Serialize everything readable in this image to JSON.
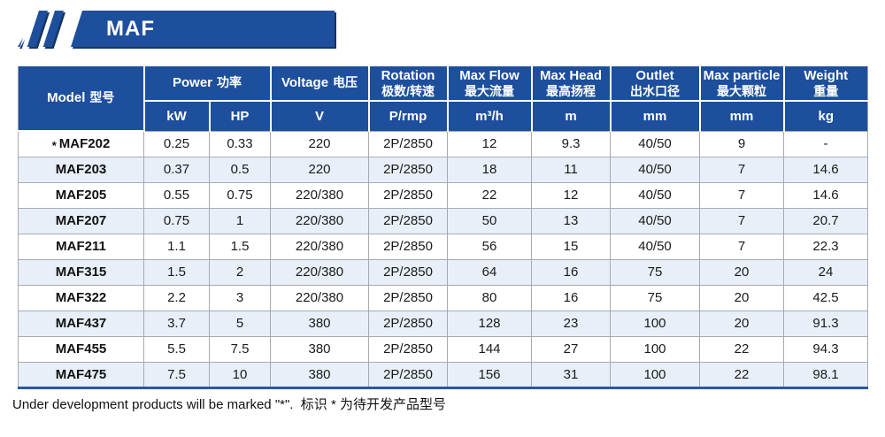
{
  "banner": {
    "title": "MAF"
  },
  "table": {
    "columns": [
      {
        "en": "Model",
        "zh": "型号"
      },
      {
        "en": "Power",
        "zh": "功率"
      },
      {
        "en": "Voltage",
        "zh": "电压"
      },
      {
        "en": "Rotation",
        "zh": "极数/转速"
      },
      {
        "en": "Max Flow",
        "zh": "最大流量"
      },
      {
        "en": "Max Head",
        "zh": "最高扬程"
      },
      {
        "en": "Outlet",
        "zh": "出水口径"
      },
      {
        "en": "Max particle",
        "zh": "最大颗粒"
      },
      {
        "en": "Weight",
        "zh": "重量"
      }
    ],
    "units": [
      "kW",
      "HP",
      "V",
      "P/rmp",
      "m³/h",
      "m",
      "mm",
      "mm",
      "kg"
    ],
    "rows": [
      {
        "star": true,
        "cells": [
          "MAF202",
          "0.25",
          "0.33",
          "220",
          "2P/2850",
          "12",
          "9.3",
          "40/50",
          "9",
          "-"
        ]
      },
      {
        "star": false,
        "cells": [
          "MAF203",
          "0.37",
          "0.5",
          "220",
          "2P/2850",
          "18",
          "11",
          "40/50",
          "7",
          "14.6"
        ]
      },
      {
        "star": false,
        "cells": [
          "MAF205",
          "0.55",
          "0.75",
          "220/380",
          "2P/2850",
          "22",
          "12",
          "40/50",
          "7",
          "14.6"
        ]
      },
      {
        "star": false,
        "cells": [
          "MAF207",
          "0.75",
          "1",
          "220/380",
          "2P/2850",
          "50",
          "13",
          "40/50",
          "7",
          "20.7"
        ]
      },
      {
        "star": false,
        "cells": [
          "MAF211",
          "1.1",
          "1.5",
          "220/380",
          "2P/2850",
          "56",
          "15",
          "40/50",
          "7",
          "22.3"
        ]
      },
      {
        "star": false,
        "cells": [
          "MAF315",
          "1.5",
          "2",
          "220/380",
          "2P/2850",
          "64",
          "16",
          "75",
          "20",
          "24"
        ]
      },
      {
        "star": false,
        "cells": [
          "MAF322",
          "2.2",
          "3",
          "220/380",
          "2P/2850",
          "80",
          "16",
          "75",
          "20",
          "42.5"
        ]
      },
      {
        "star": false,
        "cells": [
          "MAF437",
          "3.7",
          "5",
          "380",
          "2P/2850",
          "128",
          "23",
          "100",
          "20",
          "91.3"
        ]
      },
      {
        "star": false,
        "cells": [
          "MAF455",
          "5.5",
          "7.5",
          "380",
          "2P/2850",
          "144",
          "27",
          "100",
          "22",
          "94.3"
        ]
      },
      {
        "star": false,
        "cells": [
          "MAF475",
          "7.5",
          "10",
          "380",
          "2P/2850",
          "156",
          "31",
          "100",
          "22",
          "98.1"
        ]
      }
    ]
  },
  "footnote": "Under development products will be marked \"*\".  标识 * 为待开发产品型号",
  "colors": {
    "primary_blue": "#1E4F9D",
    "row_alt": "#E8EFF8",
    "table_border": "#9EA4AA",
    "bottom_bar": "#2857A6"
  }
}
